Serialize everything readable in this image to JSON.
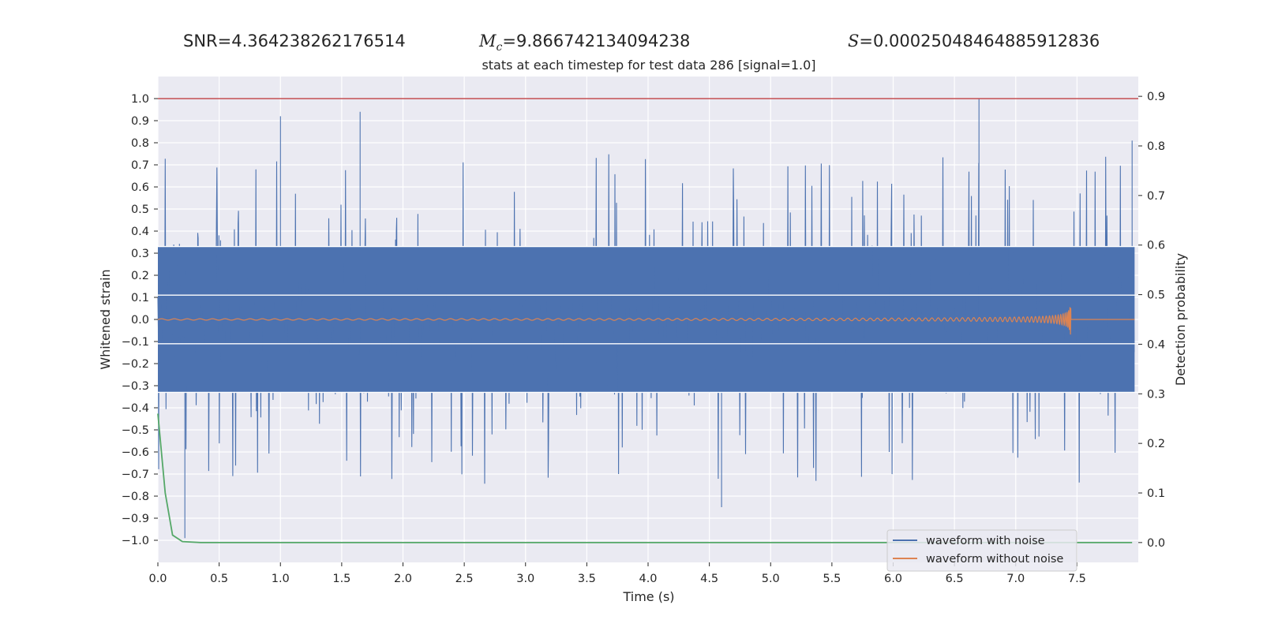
{
  "header": {
    "snr_label": "SNR",
    "snr_value": "4.364238262176514",
    "mc_symbol": "M",
    "mc_subscript": "c",
    "mc_value": "9.866742134094238",
    "s_symbol": "S",
    "s_value": "0.00025048464885912836"
  },
  "chart_data": {
    "type": "line",
    "title": "stats at each timestep for test data 286 [signal=1.0]",
    "xlabel": "Time (s)",
    "ylabel": "Whitened strain",
    "ylabel_right": "Detection probability",
    "xlim": [
      0,
      8
    ],
    "ylim": [
      -1.1,
      1.1
    ],
    "ylim_right": [
      -0.04,
      0.94
    ],
    "x_ticks": [
      "0.0",
      "0.5",
      "1.0",
      "1.5",
      "2.0",
      "2.5",
      "3.0",
      "3.5",
      "4.0",
      "4.5",
      "5.0",
      "5.5",
      "6.0",
      "6.5",
      "7.0",
      "7.5"
    ],
    "y_ticks": [
      "1.0",
      "0.9",
      "0.8",
      "0.7",
      "0.6",
      "0.5",
      "0.4",
      "0.3",
      "0.2",
      "0.1",
      "0.0",
      "−0.1",
      "−0.2",
      "−0.3",
      "−0.4",
      "−0.5",
      "−0.6",
      "−0.7",
      "−0.8",
      "−0.9",
      "−1.0"
    ],
    "y_right_ticks": [
      "0.9",
      "0.8",
      "0.7",
      "0.6",
      "0.5",
      "0.4",
      "0.3",
      "0.2",
      "0.1",
      "0.0"
    ],
    "grid": true,
    "legend_position": "lower-right",
    "series": [
      {
        "name": "waveform with noise",
        "color": "#4c72b0",
        "envelope": 0.33,
        "peak_max": 1.0,
        "peak_min": -0.99
      },
      {
        "name": "waveform without noise",
        "color": "#dd8452",
        "chirp_end": 7.45,
        "peak_amplitude": 0.17
      },
      {
        "name": "",
        "color": "#55a868",
        "axis": "right",
        "points": [
          [
            0.0,
            0.26
          ],
          [
            0.06,
            0.1
          ],
          [
            0.12,
            0.015
          ],
          [
            0.2,
            0.002
          ],
          [
            0.35,
            0.0
          ],
          [
            0.5,
            0.0
          ],
          [
            1.0,
            0.0
          ],
          [
            2.0,
            0.0
          ],
          [
            3.0,
            0.0
          ],
          [
            4.0,
            0.0
          ],
          [
            5.0,
            0.0
          ],
          [
            6.0,
            0.0
          ],
          [
            7.0,
            0.0
          ],
          [
            7.95,
            0.0
          ]
        ]
      },
      {
        "name": "",
        "color": "#c44e52",
        "axis": "left",
        "constant": 1.0
      }
    ]
  }
}
